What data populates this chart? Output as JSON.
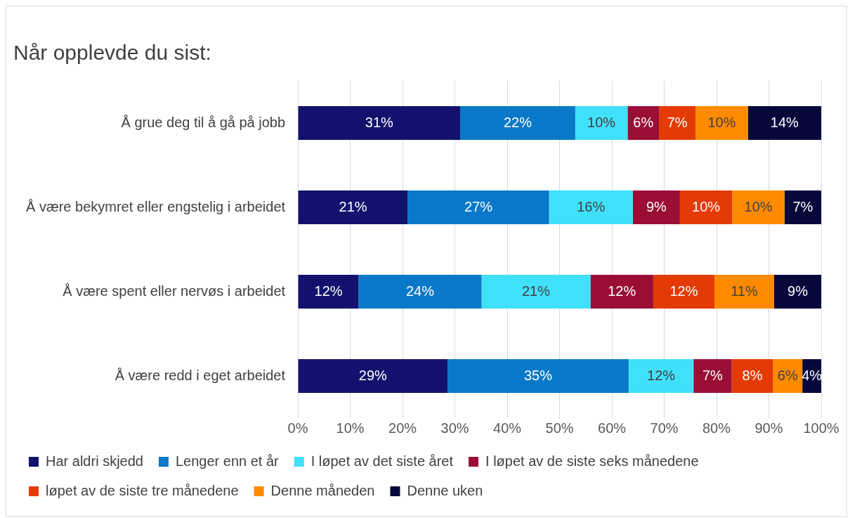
{
  "chart_data": {
    "type": "bar",
    "title": "Når opplevde du sist:",
    "orientation": "horizontal",
    "stacked": true,
    "categories": [
      "Å grue deg til å gå på jobb",
      "Å være bekymret eller engstelig i arbeidet",
      "Å være spent eller nervøs i arbeidet",
      "Å være redd i eget arbeidet"
    ],
    "series": [
      {
        "name": "Har aldri skjedd",
        "color": "#12126e",
        "values": [
          31,
          21,
          11.6,
          28.6
        ],
        "value_labels": [
          "31%",
          "21%",
          "12%",
          "29%"
        ]
      },
      {
        "name": "Lenger enn et år",
        "color": "#0a78c8",
        "values": [
          22,
          27,
          23.5,
          34.6
        ],
        "value_labels": [
          "22%",
          "27%",
          "24%",
          "35%"
        ]
      },
      {
        "name": "I løpet av det siste året",
        "color": "#40e0fb",
        "values": [
          10,
          16,
          20.8,
          12.4
        ],
        "value_labels": [
          "10%",
          "16%",
          "21%",
          "12%"
        ]
      },
      {
        "name": "I løpet av de siste seks månedene",
        "color": "#9a0e35",
        "values": [
          6,
          9,
          12.0,
          7.3
        ],
        "value_labels": [
          "6%",
          "9%",
          "12%",
          "7%"
        ]
      },
      {
        "name": "løpet av de siste tre månedene",
        "color": "#e33a06",
        "values": [
          7,
          10,
          11.7,
          7.9
        ],
        "value_labels": [
          "7%",
          "10%",
          "12%",
          "8%"
        ]
      },
      {
        "name": "Denne måneden",
        "color": "#ff8a00",
        "values": [
          10,
          10,
          11.4,
          5.6
        ],
        "value_labels": [
          "10%",
          "10%",
          "11%",
          "6%"
        ]
      },
      {
        "name": "Denne uken",
        "color": "#07083a",
        "values": [
          14,
          7,
          9.0,
          3.6
        ],
        "value_labels": [
          "14%",
          "7%",
          "9%",
          "4%"
        ]
      }
    ],
    "xlim": [
      0,
      100
    ],
    "xticks": [
      {
        "value": 0,
        "label": "0%"
      },
      {
        "value": 10,
        "label": "10%"
      },
      {
        "value": 20,
        "label": "20%"
      },
      {
        "value": 30,
        "label": "30%"
      },
      {
        "value": 40,
        "label": "40%"
      },
      {
        "value": 50,
        "label": "50%"
      },
      {
        "value": 60,
        "label": "60%"
      },
      {
        "value": 70,
        "label": "70%"
      },
      {
        "value": 80,
        "label": "80%"
      },
      {
        "value": 90,
        "label": "90%"
      },
      {
        "value": 100,
        "label": "100%"
      }
    ],
    "grid": "x",
    "legend": "bottom"
  }
}
